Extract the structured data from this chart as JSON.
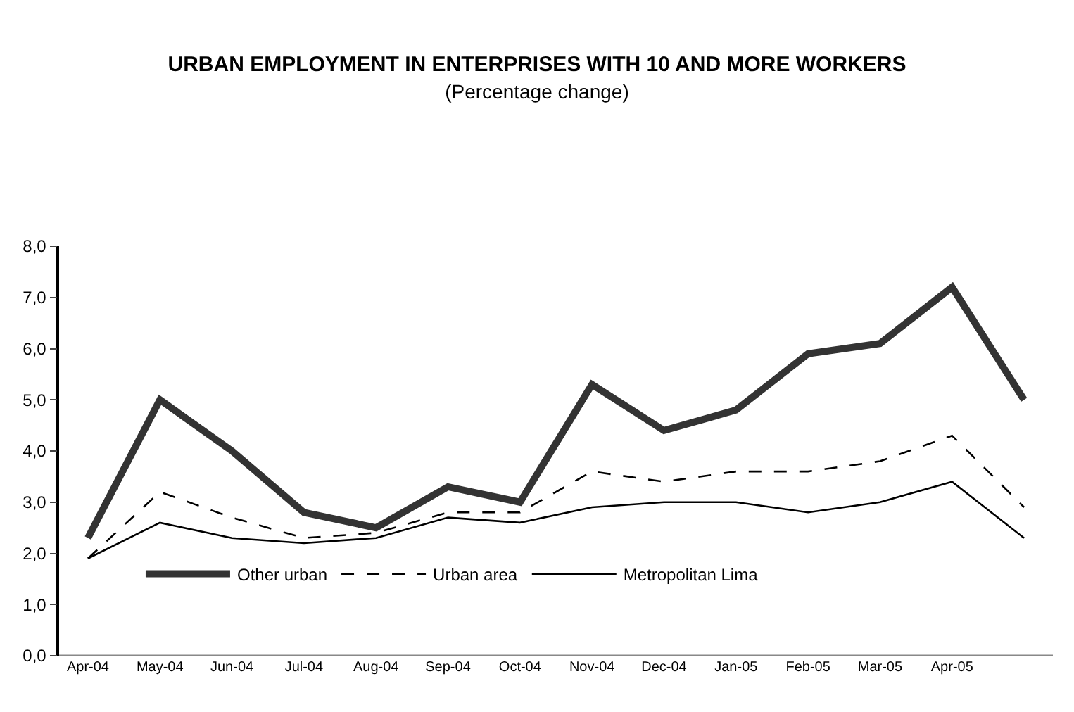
{
  "chart_data": {
    "type": "line",
    "title": "URBAN EMPLOYMENT IN ENTERPRISES WITH 10 AND MORE WORKERS",
    "subtitle": "(Percentage change)",
    "categories": [
      "Apr-04",
      "May-04",
      "Jun-04",
      "Jul-04",
      "Aug-04",
      "Sep-04",
      "Oct-04",
      "Nov-04",
      "Dec-04",
      "Jan-05",
      "Feb-05",
      "Mar-05",
      "Apr-05",
      null
    ],
    "series": [
      {
        "name": "Other urban",
        "color": "#333333",
        "line_style": "solid",
        "values": [
          2.3,
          5.0,
          4.0,
          2.8,
          2.5,
          3.3,
          3.0,
          5.3,
          4.4,
          4.8,
          5.9,
          6.1,
          7.2,
          5.0
        ]
      },
      {
        "name": "Urban area",
        "color": "#000000",
        "line_style": "dashed",
        "values": [
          1.9,
          3.2,
          2.7,
          2.3,
          2.4,
          2.8,
          2.8,
          3.6,
          3.4,
          3.6,
          3.6,
          3.8,
          4.3,
          2.9
        ]
      },
      {
        "name": "Metropolitan Lima",
        "color": "#000000",
        "line_style": "solid",
        "values": [
          1.9,
          2.6,
          2.3,
          2.2,
          2.3,
          2.7,
          2.6,
          2.9,
          3.0,
          3.0,
          2.8,
          3.0,
          3.4,
          2.3
        ]
      }
    ],
    "ylim": [
      0,
      8
    ],
    "yticks": [
      {
        "value": 0,
        "label": "0,0"
      },
      {
        "value": 1,
        "label": "1,0"
      },
      {
        "value": 2,
        "label": "2,0"
      },
      {
        "value": 3,
        "label": "3,0"
      },
      {
        "value": 4,
        "label": "4,0"
      },
      {
        "value": 5,
        "label": "5,0"
      },
      {
        "value": 6,
        "label": "6,0"
      },
      {
        "value": 7,
        "label": "7,0"
      },
      {
        "value": 8,
        "label": "8,0"
      }
    ],
    "grid": false,
    "legend": "bottom",
    "marker": "none"
  }
}
